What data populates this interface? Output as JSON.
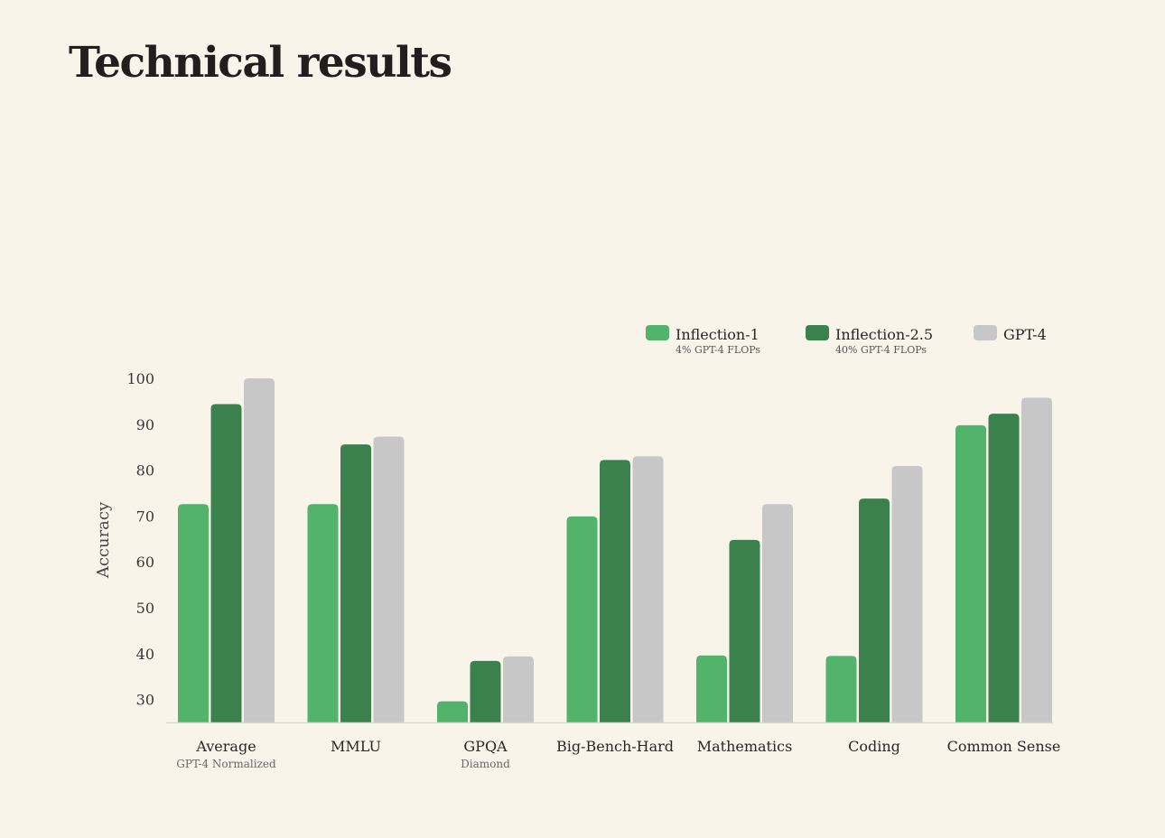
{
  "page": {
    "title": "Technical results"
  },
  "colors": {
    "background": "#f8f4ea",
    "inflection_1": "#52b36a",
    "inflection_2_5": "#3a814e",
    "gpt_4": "#c7c7c7",
    "baseline": "#dcd8d0"
  },
  "chart_data": {
    "type": "bar",
    "title": "",
    "xlabel": "",
    "ylabel": "Accuracy",
    "ylim": [
      25,
      100
    ],
    "yticks": [
      30,
      40,
      50,
      60,
      70,
      80,
      90,
      100
    ],
    "grid": false,
    "legend_position": "top-right",
    "categories": [
      "Average",
      "MMLU",
      "GPQA",
      "Big-Bench-Hard",
      "Mathematics",
      "Coding",
      "Common Sense"
    ],
    "category_sublabels": [
      "GPT-4 Normalized",
      "",
      "Diamond",
      "",
      "",
      "",
      ""
    ],
    "series": [
      {
        "name": "Inflection-1",
        "subtitle": "4% GPT-4 FLOPs",
        "color": "#52b36a",
        "values": [
          72.6,
          72.6,
          29.6,
          69.9,
          39.6,
          39.5,
          89.8
        ]
      },
      {
        "name": "Inflection-2.5",
        "subtitle": "40% GPT-4 FLOPs",
        "color": "#3a814e",
        "values": [
          94.4,
          85.6,
          38.4,
          82.2,
          64.8,
          73.8,
          92.3
        ]
      },
      {
        "name": "GPT-4",
        "subtitle": "",
        "color": "#c7c7c7",
        "values": [
          100,
          87.3,
          39.4,
          83.0,
          72.6,
          80.9,
          95.8
        ]
      }
    ]
  }
}
